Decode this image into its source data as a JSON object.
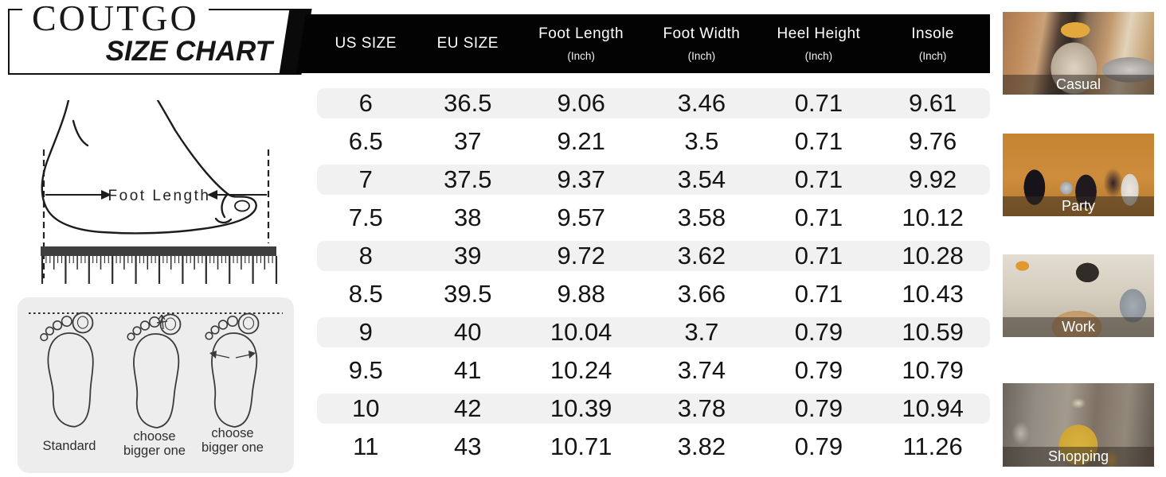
{
  "logo": {
    "brand": "COUTGO",
    "subtitle": "SIZE CHART"
  },
  "size_table": {
    "headers": [
      {
        "label": "US SIZE",
        "unit": ""
      },
      {
        "label": "EU SIZE",
        "unit": ""
      },
      {
        "label": "Foot Length",
        "unit": "(Inch)"
      },
      {
        "label": "Foot Width",
        "unit": "(Inch)"
      },
      {
        "label": "Heel Height",
        "unit": "(Inch)"
      },
      {
        "label": "Insole",
        "unit": "(Inch)"
      }
    ],
    "rows": [
      [
        "6",
        "36.5",
        "9.06",
        "3.46",
        "0.71",
        "9.61"
      ],
      [
        "6.5",
        "37",
        "9.21",
        "3.5",
        "0.71",
        "9.76"
      ],
      [
        "7",
        "37.5",
        "9.37",
        "3.54",
        "0.71",
        "9.92"
      ],
      [
        "7.5",
        "38",
        "9.57",
        "3.58",
        "0.71",
        "10.12"
      ],
      [
        "8",
        "39",
        "9.72",
        "3.62",
        "0.71",
        "10.28"
      ],
      [
        "8.5",
        "39.5",
        "9.88",
        "3.66",
        "0.71",
        "10.43"
      ],
      [
        "9",
        "40",
        "10.04",
        "3.7",
        "0.79",
        "10.59"
      ],
      [
        "9.5",
        "41",
        "10.24",
        "3.74",
        "0.79",
        "10.79"
      ],
      [
        "10",
        "42",
        "10.39",
        "3.78",
        "0.79",
        "10.94"
      ],
      [
        "11",
        "43",
        "10.71",
        "3.82",
        "0.79",
        "11.26"
      ]
    ]
  },
  "measure_diagram": {
    "label": "Foot Length"
  },
  "fit_guide": {
    "labels": [
      "Standard",
      "choose bigger one",
      "choose bigger one"
    ]
  },
  "style_gallery": [
    {
      "label": "Casual"
    },
    {
      "label": "Party"
    },
    {
      "label": "Work"
    },
    {
      "label": "Shopping"
    }
  ],
  "colors": {
    "header_bg": "#000000",
    "header_text": "#ffffff",
    "row_shade": "#f1f1f1",
    "panel_bg": "#ededed",
    "body_text": "#141414",
    "gallery_label_bg": "rgba(50,42,34,0.52)",
    "gallery_label_text": "#ffffff"
  }
}
